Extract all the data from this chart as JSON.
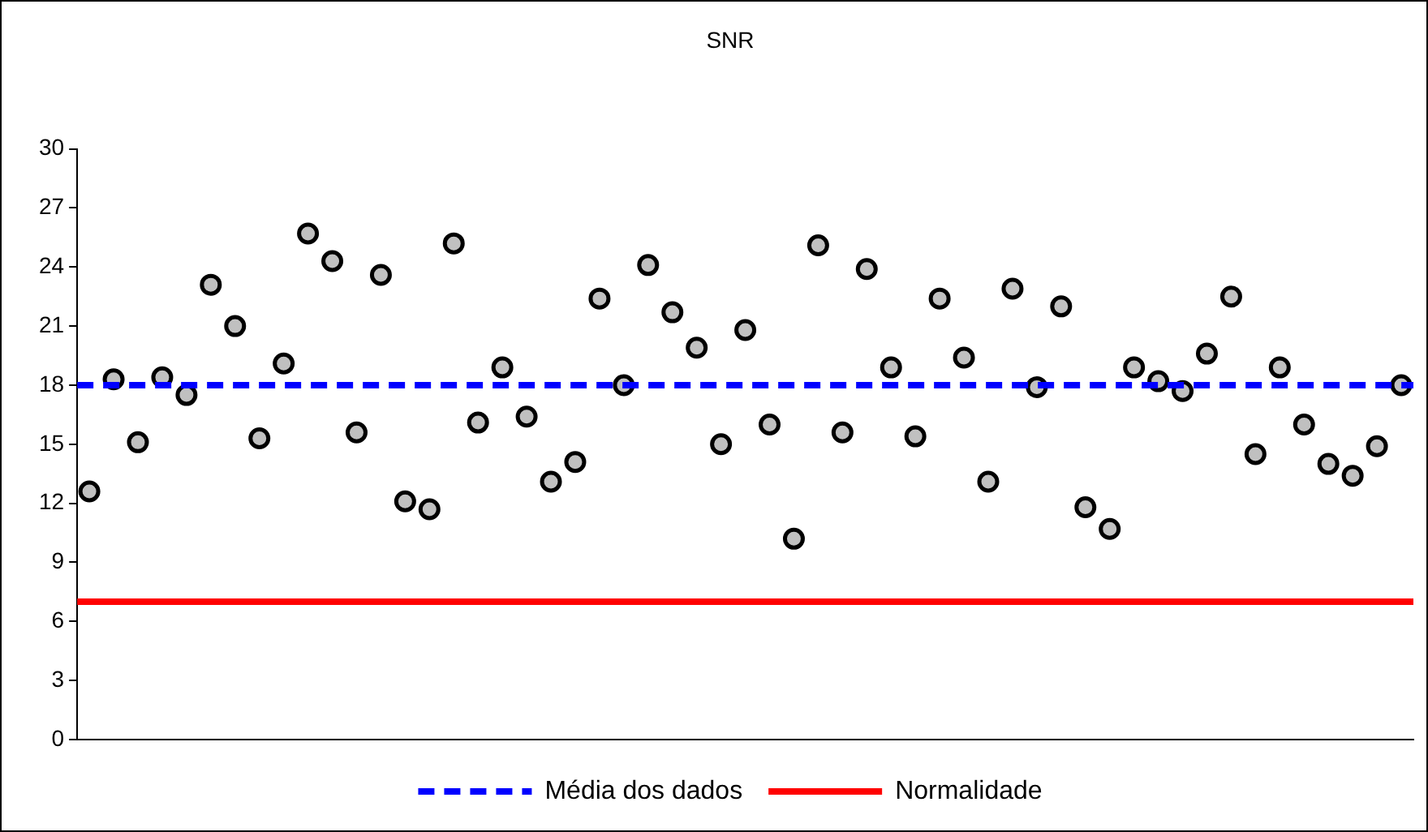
{
  "chart_data": {
    "type": "scatter",
    "title": "SNR",
    "categories": [
      null,
      null,
      null,
      null,
      null,
      null,
      null,
      null,
      null,
      null,
      null,
      null,
      null,
      null,
      null,
      null,
      null,
      null,
      null,
      null,
      null,
      null,
      null,
      null,
      null,
      null,
      null,
      null,
      null,
      null,
      null,
      null,
      null,
      null,
      null,
      null,
      null,
      null,
      null,
      null,
      null,
      null,
      null,
      null,
      null,
      null,
      null,
      null,
      null,
      null,
      null,
      null,
      null,
      null,
      null
    ],
    "series": [
      {
        "color": "#c0c0c0",
        "values": [
          12.6,
          18.3,
          15.1,
          18.4,
          17.5,
          23.1,
          21.0,
          15.3,
          19.1,
          25.7,
          24.3,
          15.6,
          23.6,
          12.1,
          11.7,
          25.2,
          16.1,
          18.9,
          16.4,
          13.1,
          14.1,
          22.4,
          18.0,
          24.1,
          21.7,
          19.9,
          15.0,
          20.8,
          16.0,
          10.2,
          25.1,
          15.6,
          23.9,
          18.9,
          15.4,
          22.4,
          19.4,
          13.1,
          22.9,
          17.9,
          22.0,
          11.8,
          10.7,
          18.9,
          18.2,
          17.7,
          19.6,
          22.5,
          14.5,
          18.9,
          16.0,
          14.0,
          13.4,
          14.9,
          18.0
        ]
      }
    ],
    "ylim": [
      0,
      30
    ],
    "yticks": [
      0,
      3,
      6,
      9,
      12,
      15,
      18,
      21,
      24,
      27,
      30
    ],
    "ref_lines": [
      {
        "axis": "y",
        "value": 18,
        "label": "Média dos dados",
        "color": "#0000ff",
        "line_style": "dashed"
      },
      {
        "axis": "y",
        "value": 7,
        "label": "Normalidade",
        "color": "#ff0000",
        "line_style": "solid"
      }
    ],
    "marker": "circle",
    "grid": false,
    "legend": "bottom",
    "tick_labels": "y"
  }
}
